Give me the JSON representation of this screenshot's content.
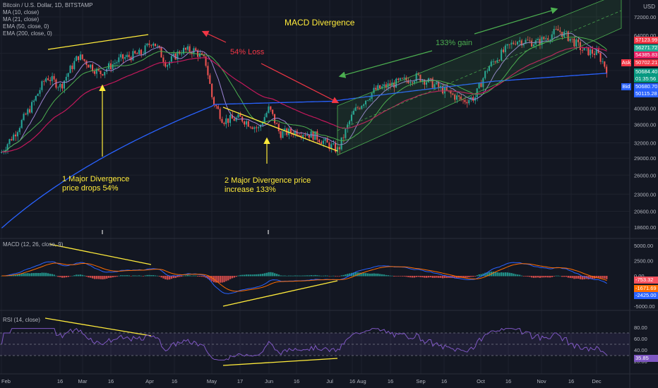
{
  "symbol": "Bitcoin / U.S. Dollar, 1D, BITSTAMP",
  "currency": "USD",
  "legend": [
    "MA (10, close)",
    "MA (21, close)",
    "EMA (50, close, 0)",
    "EMA (200, close, 0)"
  ],
  "macd_title": "MACD (12, 26, close, 9)",
  "rsi_title": "RSI (14, close)",
  "annotations": {
    "title": "MACD Divergence",
    "loss": "54% Loss",
    "gain": "133% gain",
    "div1_line1": "1 Major Divergence",
    "div1_line2": "price drops 54%",
    "div2_line1": "2 Major Divergence price",
    "div2_line2": "increase 133%"
  },
  "price_tags": [
    {
      "text": "57123.99",
      "color": "#f23645"
    },
    {
      "text": "56271.72",
      "color": "#22ab94"
    },
    {
      "text": "54385.83",
      "color": "#e91e63"
    },
    {
      "text": "50702.21",
      "color": "#f23645"
    },
    {
      "text": "50684.40",
      "color": "#089981"
    },
    {
      "text": "01:35:56",
      "color": "#089981"
    },
    {
      "text": "50680.70",
      "color": "#2962ff"
    },
    {
      "text": "50115.28",
      "color": "#2962ff"
    }
  ],
  "ask_label": "Ask",
  "bid_label": "Bid",
  "macd_tags": [
    {
      "text": "-753.32",
      "color": "#f7525f"
    },
    {
      "text": "-1671.69",
      "color": "#ff6d00"
    },
    {
      "text": "-2425.00",
      "color": "#2962ff"
    }
  ],
  "rsi_tag": {
    "text": "35.85",
    "color": "#7e57c2"
  },
  "price_axis": [
    "72000.00",
    "64000.00",
    "57000.00",
    "51000.00",
    "45000.00",
    "40000.00",
    "36000.00",
    "32000.00",
    "29000.00",
    "26000.00",
    "23000.00",
    "20600.00",
    "18600.00"
  ],
  "macd_axis": [
    "5000.00",
    "2500.00",
    "0.00",
    "-2500.00",
    "-5000.00"
  ],
  "rsi_axis": [
    "80.00",
    "60.00",
    "40.00",
    "20.00"
  ],
  "time_axis": [
    "Feb",
    "16",
    "Mar",
    "16",
    "Apr",
    "16",
    "May",
    "17",
    "Jun",
    "16",
    "Jul",
    "16",
    "Aug",
    "16",
    "Sep",
    "16",
    "Oct",
    "16",
    "Nov",
    "16",
    "Dec"
  ],
  "colors": {
    "up": "#26a69a",
    "down": "#ef5350",
    "ma10": "#9c84d4",
    "ma21": "#4caf50",
    "ema50": "#c2185b",
    "ema200": "#2962ff",
    "annotation": "#ffeb3b",
    "loss": "#f23645",
    "gain": "#4caf50"
  },
  "chart_data": {
    "type": "candlestick",
    "title": "Bitcoin / U.S. Dollar, 1D, BITSTAMP",
    "x": [
      "Feb",
      "Mar",
      "Apr",
      "May",
      "Jun",
      "Jul",
      "Aug",
      "Sep",
      "Oct",
      "Nov",
      "Dec"
    ],
    "close_series_usd": [
      33000,
      46000,
      57000,
      58000,
      37000,
      34500,
      31000,
      40000,
      47000,
      43000,
      61000,
      64000,
      50700
    ],
    "y_scale": "log",
    "ylim": [
      18600,
      72000
    ],
    "macd_ylim": [
      -5000,
      5000
    ],
    "rsi_ylim": [
      20,
      80
    ],
    "last": {
      "close": 50684.4,
      "ma10": 54385.83,
      "ma21": 56271.72,
      "ema50": 50680.7,
      "ema200": 50115.28
    },
    "macd_last": {
      "hist": -753.32,
      "signal": -1671.69,
      "macd": -2425.0
    },
    "rsi_last": 35.85
  }
}
